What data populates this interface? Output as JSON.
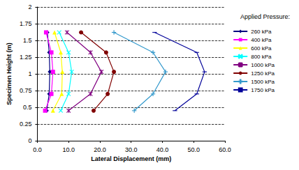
{
  "chart_data": {
    "type": "line",
    "x_label": "Lateral Displacement (mm)",
    "y_label": "Specimen Height (m)",
    "legend_title": "Applied Pressure:",
    "legend": "right",
    "grid": "y",
    "line_style": "solid",
    "xlim": [
      0,
      60
    ],
    "xticks": [
      {
        "value": 0,
        "label": "0.0"
      },
      {
        "value": 10,
        "label": "10.0"
      },
      {
        "value": 20,
        "label": "20.0"
      },
      {
        "value": 30,
        "label": "30.0"
      },
      {
        "value": 40,
        "label": "40.0"
      },
      {
        "value": 50,
        "label": "50.0"
      },
      {
        "value": 60,
        "label": "60.0"
      }
    ],
    "ylim": [
      0,
      2
    ],
    "yticks": [
      0,
      0.25,
      0.5,
      0.75,
      1,
      1.25,
      1.5,
      1.75,
      2
    ],
    "series": [
      {
        "name": "260 kPa",
        "color": "#000080",
        "marker": "diamond",
        "x": [
          3.2,
          3.8,
          4.0,
          3.8,
          3.0
        ],
        "values": [
          1.62,
          1.32,
          1.03,
          0.7,
          0.45
        ]
      },
      {
        "name": "400 kPa",
        "color": "#ff00ff",
        "marker": "square",
        "x": [
          2.8,
          4.5,
          5.0,
          4.5,
          2.5
        ],
        "values": [
          1.62,
          1.32,
          1.03,
          0.7,
          0.45
        ]
      },
      {
        "name": "600 kPa",
        "color": "#ffff00",
        "marker": "triangle",
        "x": [
          5.5,
          7.5,
          8.0,
          7.8,
          5.0
        ],
        "values": [
          1.62,
          1.32,
          1.03,
          0.7,
          0.45
        ]
      },
      {
        "name": "800 kPa",
        "color": "#00ffff",
        "marker": "x",
        "x": [
          7.0,
          10.0,
          11.0,
          10.0,
          7.5
        ],
        "values": [
          1.62,
          1.32,
          1.03,
          0.7,
          0.45
        ]
      },
      {
        "name": "1000 kPa",
        "color": "#800080",
        "marker": "star",
        "x": [
          9.5,
          17.0,
          20.5,
          17.0,
          10.0
        ],
        "values": [
          1.62,
          1.32,
          1.03,
          0.7,
          0.45
        ]
      },
      {
        "name": "1250 kPa",
        "color": "#800000",
        "marker": "circle",
        "x": [
          14.0,
          22.0,
          24.5,
          22.5,
          18.0
        ],
        "values": [
          1.62,
          1.32,
          1.03,
          0.7,
          0.45
        ]
      },
      {
        "name": "1500 kPa",
        "color": "#3399cc",
        "marker": "plus",
        "x": [
          24.5,
          37.0,
          41.0,
          37.0,
          31.0
        ],
        "values": [
          1.62,
          1.32,
          1.03,
          0.7,
          0.45
        ]
      },
      {
        "name": "1750 kPa",
        "color": "#000099",
        "marker": "dash",
        "x": [
          37.5,
          51.0,
          53.5,
          51.0,
          44.0
        ],
        "values": [
          1.62,
          1.32,
          1.03,
          0.7,
          0.45
        ]
      }
    ]
  }
}
